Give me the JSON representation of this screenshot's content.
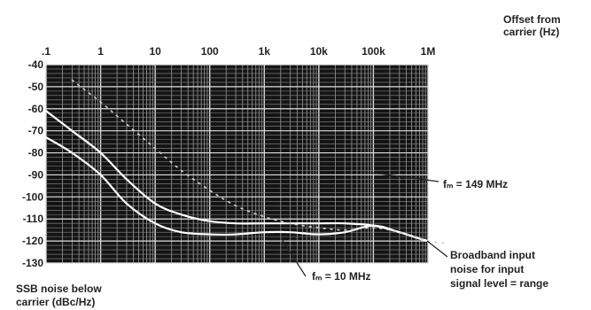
{
  "chart_data": {
    "type": "line",
    "xscale": "log",
    "x_ticks": [
      0.1,
      1,
      10,
      100,
      1000,
      10000,
      100000,
      1000000
    ],
    "x_tick_labels": [
      ".1",
      "1",
      "10",
      "100",
      "1k",
      "10k",
      "100k",
      "1M"
    ],
    "xlim": [
      0.1,
      1000000
    ],
    "xlabel": [
      "Offset from",
      "carrier (Hz)"
    ],
    "ylim": [
      -130,
      -40
    ],
    "y_ticks": [
      -40,
      -50,
      -60,
      -70,
      -80,
      -90,
      -100,
      -110,
      -120,
      -130
    ],
    "y_tick_labels": [
      "-40",
      "-50",
      "-60",
      "-70",
      "-80",
      "-90",
      "-100",
      "-110",
      "-120",
      "-130"
    ],
    "ylabel": [
      "SSB noise below",
      "carrier (dBc/Hz)"
    ],
    "grid": true,
    "series": [
      {
        "name": "fₘ = 149 MHz",
        "x": [
          0.1,
          0.3,
          1,
          3,
          10,
          30,
          100,
          300,
          1000,
          3000,
          10000,
          30000,
          100000,
          300000,
          1000000,
          2000000
        ],
        "y": [
          -61,
          -70,
          -80,
          -92,
          -103,
          -108,
          -111,
          -112,
          -112,
          -112,
          -112,
          -112,
          -113,
          -116,
          -120,
          -121
        ]
      },
      {
        "name": "fₘ = 10 MHz",
        "x": [
          0.1,
          0.3,
          1,
          3,
          10,
          30,
          100,
          300,
          1000,
          3000,
          10000,
          30000,
          100000,
          300000,
          1000000,
          2000000
        ],
        "y": [
          -73,
          -80,
          -90,
          -103,
          -112,
          -116,
          -117,
          -117,
          -116,
          -116,
          -117,
          -116,
          -113,
          -116,
          -120,
          -121
        ]
      },
      {
        "name": "Broadband input noise for input signal level = range",
        "x": [
          0.3,
          1,
          3,
          10,
          30,
          100,
          300,
          1000,
          3000,
          10000,
          30000,
          100000,
          300000,
          1000000,
          2000000
        ],
        "y": [
          -47,
          -57,
          -67,
          -78,
          -88,
          -97,
          -104,
          -109,
          -112,
          -114,
          -115,
          -114,
          -116,
          -120,
          -121
        ]
      }
    ],
    "annotations": {
      "f149": "fₘ = 149 MHz",
      "f10": "fₘ = 10 MHz",
      "broadband": [
        "Broadband input",
        "noise for input",
        "signal level = range"
      ]
    }
  }
}
